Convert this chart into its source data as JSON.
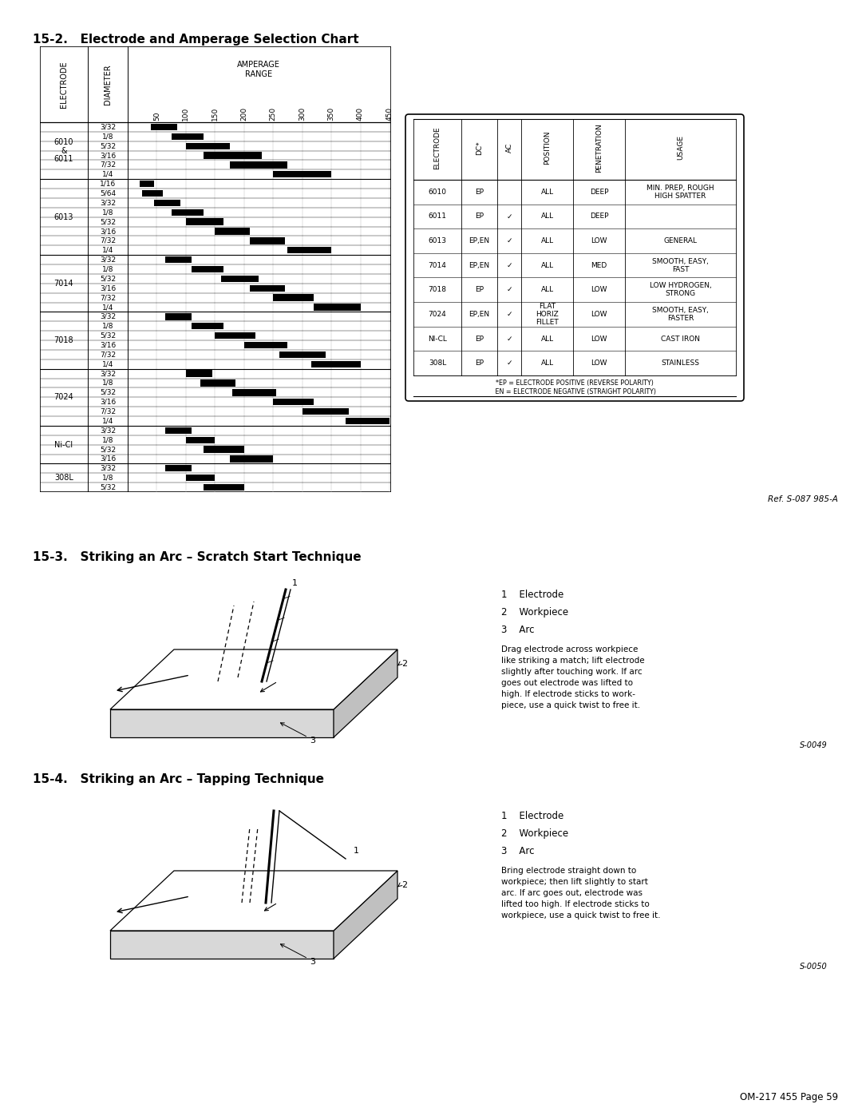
{
  "title1": "15-2.   Electrode and Amperage Selection Chart",
  "title2": "15-3.   Striking an Arc – Scratch Start Technique",
  "title3": "15-4.   Striking an Arc – Tapping Technique",
  "footer": "OM-217 455 Page 59",
  "ref1": "Ref. S-087 985-A",
  "ref2": "S-0049",
  "ref3": "S-0050",
  "amperage_ticks": [
    50,
    100,
    150,
    200,
    250,
    300,
    350,
    400,
    450
  ],
  "amp_max": 450,
  "electrodes": [
    {
      "name": "6010\n&\n6011",
      "diameters": [
        "3/32",
        "1/8",
        "5/32",
        "3/16",
        "7/32",
        "1/4"
      ],
      "ranges": [
        [
          40,
          85
        ],
        [
          75,
          130
        ],
        [
          100,
          175
        ],
        [
          130,
          230
        ],
        [
          175,
          275
        ],
        [
          250,
          350
        ]
      ]
    },
    {
      "name": "6013",
      "diameters": [
        "1/16",
        "5/64",
        "3/32",
        "1/8",
        "5/32",
        "3/16",
        "7/32",
        "1/4"
      ],
      "ranges": [
        [
          20,
          45
        ],
        [
          25,
          60
        ],
        [
          45,
          90
        ],
        [
          75,
          130
        ],
        [
          100,
          165
        ],
        [
          150,
          210
        ],
        [
          210,
          270
        ],
        [
          275,
          350
        ]
      ]
    },
    {
      "name": "7014",
      "diameters": [
        "3/32",
        "1/8",
        "5/32",
        "3/16",
        "7/32",
        "1/4"
      ],
      "ranges": [
        [
          65,
          110
        ],
        [
          110,
          165
        ],
        [
          160,
          225
        ],
        [
          210,
          270
        ],
        [
          250,
          320
        ],
        [
          320,
          400
        ]
      ]
    },
    {
      "name": "7018",
      "diameters": [
        "3/32",
        "1/8",
        "5/32",
        "3/16",
        "7/32",
        "1/4"
      ],
      "ranges": [
        [
          65,
          110
        ],
        [
          110,
          165
        ],
        [
          150,
          220
        ],
        [
          200,
          275
        ],
        [
          260,
          340
        ],
        [
          315,
          400
        ]
      ]
    },
    {
      "name": "7024",
      "diameters": [
        "3/32",
        "1/8",
        "5/32",
        "3/16",
        "7/32",
        "1/4"
      ],
      "ranges": [
        [
          100,
          145
        ],
        [
          125,
          185
        ],
        [
          180,
          255
        ],
        [
          250,
          320
        ],
        [
          300,
          380
        ],
        [
          375,
          450
        ]
      ]
    },
    {
      "name": "Ni-Cl",
      "diameters": [
        "3/32",
        "1/8",
        "5/32",
        "3/16"
      ],
      "ranges": [
        [
          65,
          110
        ],
        [
          100,
          150
        ],
        [
          130,
          200
        ],
        [
          175,
          250
        ]
      ]
    },
    {
      "name": "308L",
      "diameters": [
        "3/32",
        "1/8",
        "5/32"
      ],
      "ranges": [
        [
          65,
          110
        ],
        [
          100,
          150
        ],
        [
          130,
          200
        ]
      ]
    }
  ],
  "side_table_rows": [
    [
      "6010",
      "EP",
      "",
      "ALL",
      "DEEP",
      "MIN. PREP, ROUGH\nHIGH SPATTER"
    ],
    [
      "6011",
      "EP",
      "✓",
      "ALL",
      "DEEP",
      ""
    ],
    [
      "6013",
      "EP,EN",
      "✓",
      "ALL",
      "LOW",
      "GENERAL"
    ],
    [
      "7014",
      "EP,EN",
      "✓",
      "ALL",
      "MED",
      "SMOOTH, EASY,\nFAST"
    ],
    [
      "7018",
      "EP",
      "✓",
      "ALL",
      "LOW",
      "LOW HYDROGEN,\nSTRONG"
    ],
    [
      "7024",
      "EP,EN",
      "✓",
      "FLAT\nHORIZ\nFILLET",
      "LOW",
      "SMOOTH, EASY,\nFASTER"
    ],
    [
      "NI-CL",
      "EP",
      "✓",
      "ALL",
      "LOW",
      "CAST IRON"
    ],
    [
      "308L",
      "EP",
      "✓",
      "ALL",
      "LOW",
      "STAINLESS"
    ]
  ],
  "side_table_footnote1": "*EP = ELECTRODE POSITIVE (REVERSE POLARITY)",
  "side_table_footnote2": " EN = ELECTRODE NEGATIVE (STRAIGHT POLARITY)",
  "scratch_items": [
    "1    Electrode",
    "2    Workpiece",
    "3    Arc"
  ],
  "scratch_desc": "Drag electrode across workpiece\nlike striking a match; lift electrode\nslightly after touching work. If arc\ngoes out electrode was lifted to\nhigh. If electrode sticks to work-\npiece, use a quick twist to free it.",
  "tap_items": [
    "1    Electrode",
    "2    Workpiece",
    "3    Arc"
  ],
  "tap_desc": "Bring electrode straight down to\nworkpiece; then lift slightly to start\narc. If arc goes out, electrode was\nlifted too high. If electrode sticks to\nworkpiece, use a quick twist to free it."
}
